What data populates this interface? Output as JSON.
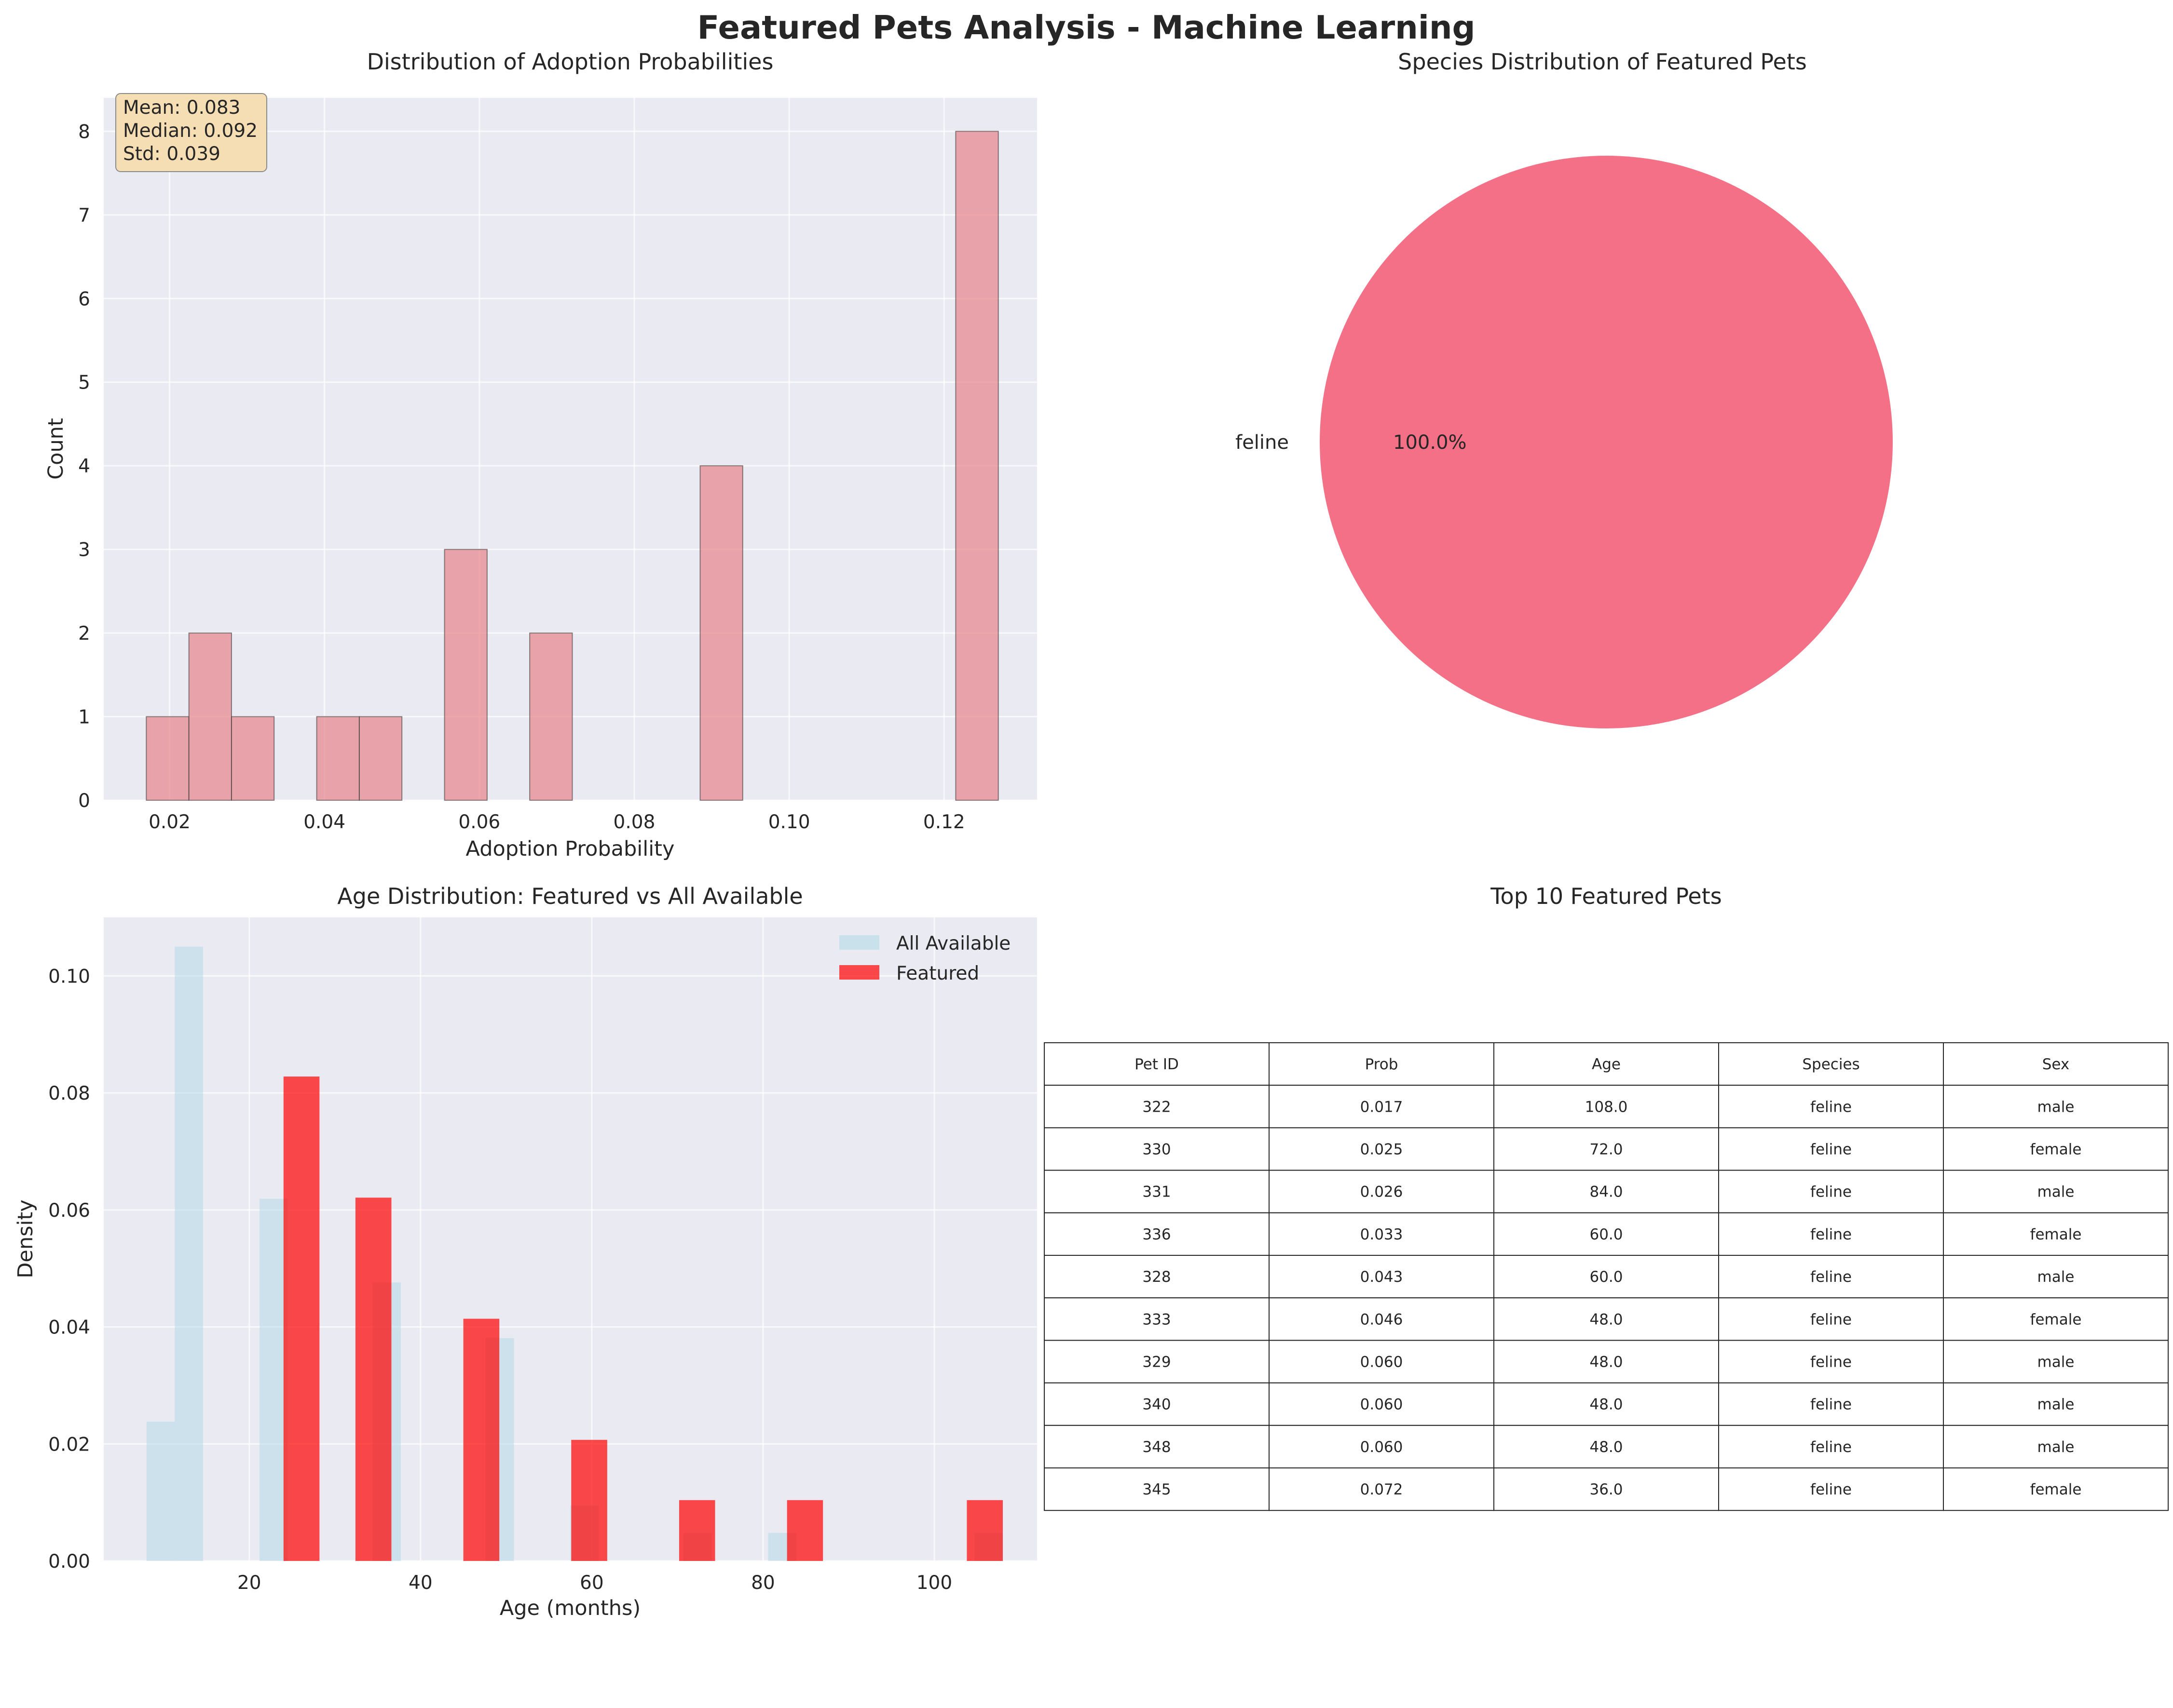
{
  "suptitle": "Featured Pets Analysis - Machine Learning",
  "colors": {
    "axes_bg": "#EAEAF2",
    "grid": "#FFFFFF",
    "hist": "#E8868C",
    "pie": "#F37086",
    "featured": "#FF0000",
    "all": "#ADD8E6"
  },
  "chart_data": [
    {
      "type": "bar",
      "title": "Distribution of Adoption Probabilities",
      "xlabel": "Adoption Probability",
      "ylabel": "Count",
      "xlim": [
        0.0115,
        0.132
      ],
      "ylim": [
        0,
        8.4
      ],
      "xticks": [
        0.02,
        0.04,
        0.06,
        0.08,
        0.1,
        0.12
      ],
      "xtick_labels": [
        "0.02",
        "0.04",
        "0.06",
        "0.08",
        "0.10",
        "0.12"
      ],
      "yticks": [
        0,
        1,
        2,
        3,
        4,
        5,
        6,
        7,
        8
      ],
      "yticks_labels": [
        "0",
        "1",
        "2",
        "3",
        "4",
        "5",
        "6",
        "7",
        "8"
      ],
      "bins": [
        {
          "x0": 0.017,
          "x1": 0.0225,
          "count": 1
        },
        {
          "x0": 0.0225,
          "x1": 0.028,
          "count": 2
        },
        {
          "x0": 0.028,
          "x1": 0.0335,
          "count": 1
        },
        {
          "x0": 0.039,
          "x1": 0.0445,
          "count": 1
        },
        {
          "x0": 0.0445,
          "x1": 0.05,
          "count": 1
        },
        {
          "x0": 0.0555,
          "x1": 0.061,
          "count": 3
        },
        {
          "x0": 0.0665,
          "x1": 0.072,
          "count": 2
        },
        {
          "x0": 0.0885,
          "x1": 0.094,
          "count": 4
        },
        {
          "x0": 0.1215,
          "x1": 0.127,
          "count": 8
        }
      ],
      "stats_lines": [
        "Mean: 0.083",
        "Median: 0.092",
        "Std: 0.039"
      ],
      "grid": true
    },
    {
      "type": "pie",
      "title": "Species Distribution of Featured Pets",
      "slices": [
        {
          "label": "feline",
          "value": 100.0,
          "pct_label": "100.0%"
        }
      ]
    },
    {
      "type": "bar",
      "title": "Age Distribution: Featured vs All Available",
      "xlabel": "Age (months)",
      "ylabel": "Density",
      "xlim": [
        3,
        112
      ],
      "ylim": [
        0,
        0.11
      ],
      "xticks": [
        20,
        40,
        60,
        80,
        100
      ],
      "xtick_labels": [
        "20",
        "40",
        "60",
        "80",
        "100"
      ],
      "yticks": [
        0,
        0.02,
        0.04,
        0.06,
        0.08,
        0.1
      ],
      "yticks_labels": [
        "0.00",
        "0.02",
        "0.04",
        "0.06",
        "0.08",
        "0.10"
      ],
      "legend_position": "upper right",
      "series": [
        {
          "name": "All Available",
          "color": "#ADD8E6",
          "bins": [
            {
              "x0": 8.0,
              "x1": 11.3,
              "density": 0.0238
            },
            {
              "x0": 11.3,
              "x1": 14.6,
              "density": 0.105
            },
            {
              "x0": 21.2,
              "x1": 24.5,
              "density": 0.0619
            },
            {
              "x0": 34.4,
              "x1": 37.7,
              "density": 0.0476
            },
            {
              "x0": 47.6,
              "x1": 50.9,
              "density": 0.0381
            },
            {
              "x0": 57.5,
              "x1": 60.8,
              "density": 0.0095
            },
            {
              "x0": 70.7,
              "x1": 74.0,
              "density": 0.0048
            },
            {
              "x0": 80.6,
              "x1": 83.9,
              "density": 0.0048
            },
            {
              "x0": 104.7,
              "x1": 108.0,
              "density": 0.0048
            }
          ]
        },
        {
          "name": "Featured",
          "color": "#FF0000",
          "bins": [
            {
              "x0": 24.0,
              "x1": 28.2,
              "density": 0.0828
            },
            {
              "x0": 32.4,
              "x1": 36.6,
              "density": 0.0621
            },
            {
              "x0": 45.0,
              "x1": 49.2,
              "density": 0.0414
            },
            {
              "x0": 57.6,
              "x1": 61.8,
              "density": 0.0207
            },
            {
              "x0": 70.2,
              "x1": 74.4,
              "density": 0.0104
            },
            {
              "x0": 82.8,
              "x1": 87.0,
              "density": 0.0104
            },
            {
              "x0": 103.8,
              "x1": 108.0,
              "density": 0.0104
            }
          ]
        }
      ]
    },
    {
      "type": "table",
      "title": "Top 10 Featured Pets",
      "columns": [
        "Pet ID",
        "Prob",
        "Age",
        "Species",
        "Sex"
      ],
      "rows": [
        [
          "322",
          "0.017",
          "108.0",
          "feline",
          "male"
        ],
        [
          "330",
          "0.025",
          "72.0",
          "feline",
          "female"
        ],
        [
          "331",
          "0.026",
          "84.0",
          "feline",
          "male"
        ],
        [
          "336",
          "0.033",
          "60.0",
          "feline",
          "female"
        ],
        [
          "328",
          "0.043",
          "60.0",
          "feline",
          "male"
        ],
        [
          "333",
          "0.046",
          "48.0",
          "feline",
          "female"
        ],
        [
          "329",
          "0.060",
          "48.0",
          "feline",
          "male"
        ],
        [
          "340",
          "0.060",
          "48.0",
          "feline",
          "male"
        ],
        [
          "348",
          "0.060",
          "48.0",
          "feline",
          "male"
        ],
        [
          "345",
          "0.072",
          "36.0",
          "feline",
          "female"
        ]
      ]
    }
  ]
}
